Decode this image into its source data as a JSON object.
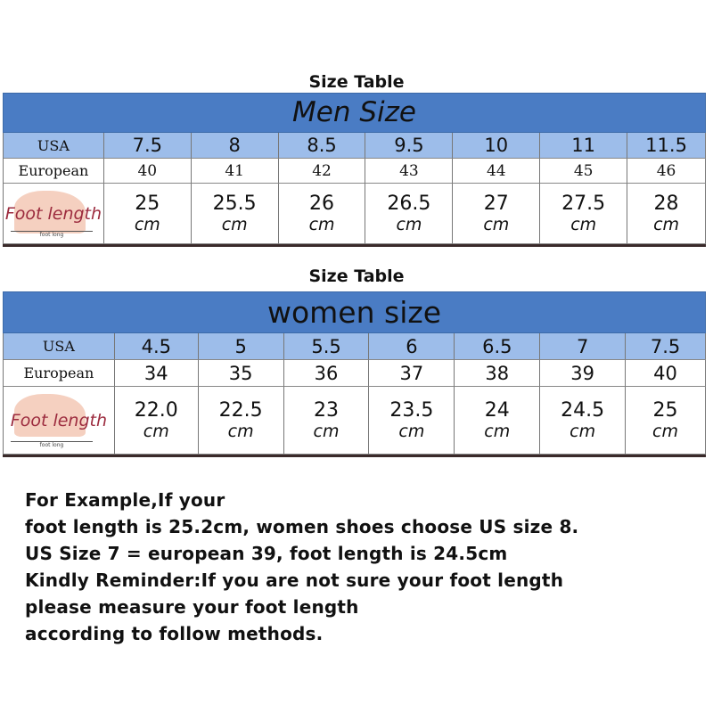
{
  "men": {
    "caption": "Size Table",
    "title": "Men Size",
    "usa_label": "USA",
    "eu_label": "European",
    "foot_label": "Foot length",
    "foot_ruler": "foot long",
    "unit": "cm",
    "usa": [
      "7.5",
      "8",
      "8.5",
      "9.5",
      "10",
      "11",
      "11.5"
    ],
    "eu": [
      "40",
      "41",
      "42",
      "43",
      "44",
      "45",
      "46"
    ],
    "foot": [
      "25",
      "25.5",
      "26",
      "26.5",
      "27",
      "27.5",
      "28"
    ]
  },
  "women": {
    "caption": "Size Table",
    "title": "women size",
    "usa_label": "USA",
    "eu_label": "European",
    "foot_label": "Foot length",
    "foot_ruler": "foot long",
    "unit": "cm",
    "usa": [
      "4.5",
      "5",
      "5.5",
      "6",
      "6.5",
      "7",
      "7.5"
    ],
    "eu": [
      "34",
      "35",
      "36",
      "37",
      "38",
      "39",
      "40"
    ],
    "foot": [
      "22.0",
      "22.5",
      "23",
      "23.5",
      "24",
      "24.5",
      "25"
    ]
  },
  "notes": [
    "For Example,If your",
    "foot length is 25.2cm, women shoes choose US size 8.",
    "US Size 7 = european 39, foot length is 24.5cm",
    "Kindly Reminder:If you are not sure your foot length",
    "please measure your foot length",
    "according to follow methods."
  ]
}
